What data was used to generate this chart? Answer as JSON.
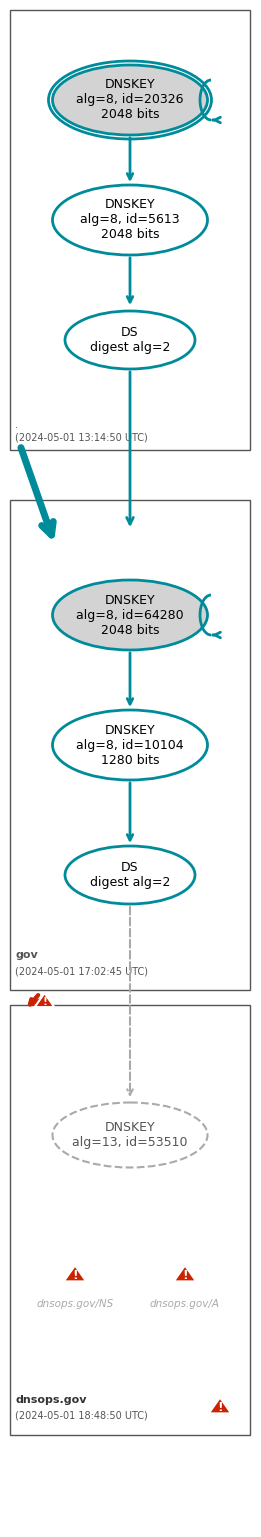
{
  "teal": "#008B9B",
  "teal_dark": "#007080",
  "gray_fill": "#D3D3D3",
  "red": "#CC2200",
  "red_arrow": "#CC2200",
  "light_gray": "#CCCCCC",
  "section1": {
    "box_label": ".",
    "timestamp": "(2024-05-01 13:14:50 UTC)",
    "nodes": [
      {
        "label": "DNSKEY\nalg=8, id=20326\n2048 bits",
        "filled": true,
        "double_border": true
      },
      {
        "label": "DNSKEY\nalg=8, id=5613\n2048 bits",
        "filled": false,
        "double_border": false
      },
      {
        "label": "DS\ndigest alg=2",
        "filled": false,
        "double_border": false
      }
    ]
  },
  "section2": {
    "box_label": "gov",
    "timestamp": "(2024-05-01 17:02:45 UTC)",
    "nodes": [
      {
        "label": "DNSKEY\nalg=8, id=64280\n2048 bits",
        "filled": true,
        "double_border": false
      },
      {
        "label": "DNSKEY\nalg=8, id=10104\n1280 bits",
        "filled": false,
        "double_border": false
      },
      {
        "label": "DS\ndigest alg=2",
        "filled": false,
        "double_border": false
      }
    ]
  },
  "section3": {
    "box_label": "dnsops.gov",
    "timestamp": "(2024-05-01 18:48:50 UTC)",
    "nodes": [
      {
        "label": "DNSKEY\nalg=13, id=53510",
        "filled": false,
        "dashed": true
      }
    ],
    "extra_labels": [
      "dnsops.gov/NS",
      "dnsops.gov/A"
    ]
  }
}
